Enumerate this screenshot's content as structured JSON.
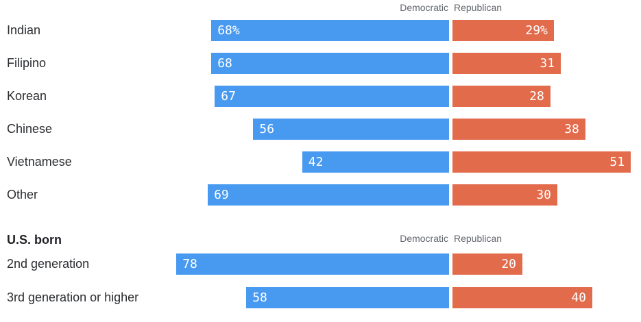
{
  "header": {
    "democratic": "Democratic",
    "republican": "Republican"
  },
  "chart_data": {
    "type": "bar",
    "orientation": "horizontal-paired-diverging",
    "series_names": [
      "Democratic",
      "Republican"
    ],
    "unit": "percent",
    "value_range": [
      0,
      100
    ],
    "grid": false,
    "legend_position": "top-center-flanking-divider",
    "colors": {
      "democratic": "#489af0",
      "republican": "#e26b4c",
      "value_text": "#ffffff",
      "category_text": "#2a2c30",
      "header_text": "#63676e"
    },
    "sections": [
      {
        "title": "",
        "rows": [
          {
            "category": "Indian",
            "democratic": 68,
            "republican": 29,
            "democratic_label": "68%",
            "republican_label": "29%"
          },
          {
            "category": "Filipino",
            "democratic": 68,
            "republican": 31,
            "democratic_label": "68",
            "republican_label": "31"
          },
          {
            "category": "Korean",
            "democratic": 67,
            "republican": 28,
            "democratic_label": "67",
            "republican_label": "28"
          },
          {
            "category": "Chinese",
            "democratic": 56,
            "republican": 38,
            "democratic_label": "56",
            "republican_label": "38"
          },
          {
            "category": "Vietnamese",
            "democratic": 42,
            "republican": 51,
            "democratic_label": "42",
            "republican_label": "51"
          },
          {
            "category": "Other",
            "democratic": 69,
            "republican": 30,
            "democratic_label": "69",
            "republican_label": "30"
          }
        ]
      },
      {
        "title": "U.S. born",
        "rows": [
          {
            "category": "2nd generation",
            "democratic": 78,
            "republican": 20,
            "democratic_label": "78",
            "republican_label": "20"
          },
          {
            "category": "3rd generation or higher",
            "democratic": 58,
            "republican": 40,
            "democratic_label": "58",
            "republican_label": "40"
          }
        ]
      }
    ]
  }
}
